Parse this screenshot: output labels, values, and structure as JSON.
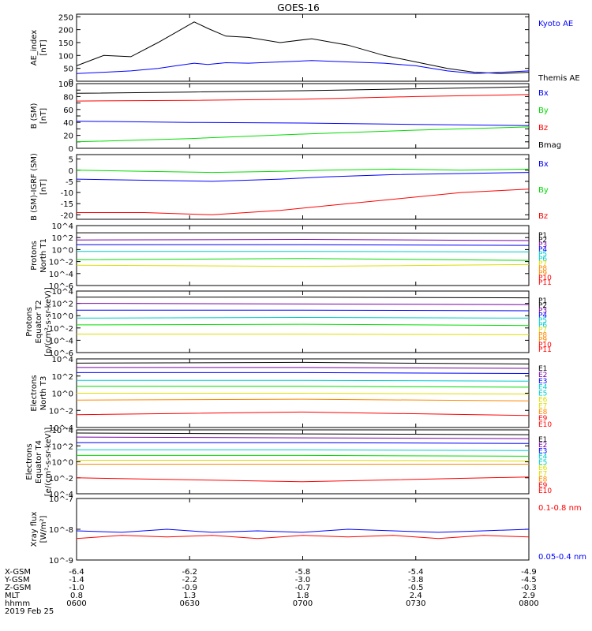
{
  "title": "GOES-16",
  "footer": {
    "rows": [
      {
        "label": "X-GSM",
        "values": [
          "-6.4",
          "-6.2",
          "-5.8",
          "-5.4",
          "-4.9"
        ]
      },
      {
        "label": "Y-GSM",
        "values": [
          "-1.4",
          "-2.2",
          "-3.0",
          "-3.8",
          "-4.5"
        ]
      },
      {
        "label": "Z-GSM",
        "values": [
          "-1.0",
          "-0.9",
          "-0.7",
          "-0.5",
          "-0.3"
        ]
      },
      {
        "label": "MLT",
        "values": [
          "0.8",
          "1.3",
          "1.8",
          "2.4",
          "2.9"
        ]
      },
      {
        "label": "hhmm",
        "values": [
          "0600",
          "0630",
          "0700",
          "0730",
          "0800"
        ]
      }
    ],
    "date": "2019 Feb 25"
  },
  "colors": {
    "black": "#000000",
    "blue": "#0000ff",
    "green": "#00dd00",
    "red": "#ff0000",
    "purple": "#7700aa",
    "cyan": "#00cccc",
    "yellow": "#dddd00",
    "orange": "#ff8800"
  },
  "chart_data": [
    {
      "type": "line",
      "ylabel": [
        "AE_index",
        "[nT]"
      ],
      "ylim": [
        0,
        260
      ],
      "yscale": "linear",
      "ticks": [
        0,
        50,
        100,
        150,
        200,
        250
      ],
      "tick_labels": [
        "0",
        "50",
        "100",
        "150",
        "200",
        "250"
      ],
      "x": [
        0,
        0.06,
        0.12,
        0.18,
        0.22,
        0.26,
        0.29,
        0.33,
        0.38,
        0.45,
        0.52,
        0.6,
        0.68,
        0.75,
        0.82,
        0.88,
        0.94,
        1.0
      ],
      "series": [
        {
          "name": "Themis AE",
          "color": "#000000",
          "values": [
            60,
            100,
            95,
            150,
            190,
            230,
            205,
            175,
            170,
            150,
            165,
            140,
            100,
            75,
            50,
            35,
            30,
            35
          ]
        },
        {
          "name": "Kyoto AE",
          "color": "#0000ff",
          "values": [
            30,
            35,
            40,
            50,
            60,
            70,
            65,
            72,
            70,
            75,
            80,
            75,
            70,
            60,
            40,
            30,
            35,
            40
          ]
        }
      ],
      "legend": [
        "Kyoto AE",
        "Themis AE"
      ],
      "legend_colors": [
        "#0000ff",
        "#000000"
      ]
    },
    {
      "type": "line",
      "ylabel": [
        "B (SM)",
        "[nT]"
      ],
      "ylim": [
        0,
        100
      ],
      "yscale": "linear",
      "ticks": [
        0,
        10,
        20,
        30,
        40,
        50,
        60,
        70,
        80,
        90,
        100
      ],
      "tick_labels": [
        "0",
        "",
        "20",
        "",
        "40",
        "",
        "60",
        "",
        "80",
        "",
        "100"
      ],
      "x": [
        0,
        0.25,
        0.5,
        0.75,
        1.0
      ],
      "series": [
        {
          "name": "Bmag",
          "color": "#000000",
          "values": [
            85,
            87,
            89,
            92,
            95
          ]
        },
        {
          "name": "Bz",
          "color": "#ff0000",
          "values": [
            73,
            74,
            76,
            80,
            83
          ]
        },
        {
          "name": "Bx",
          "color": "#0000ff",
          "values": [
            42,
            40,
            39,
            37,
            35
          ]
        },
        {
          "name": "By",
          "color": "#00dd00",
          "values": [
            10,
            15,
            22,
            28,
            33
          ]
        }
      ],
      "legend": [
        "Bx",
        "By",
        "Bz",
        "Bmag"
      ],
      "legend_colors": [
        "#0000ff",
        "#00dd00",
        "#ff0000",
        "#000000"
      ]
    },
    {
      "type": "line",
      "ylabel": [
        "B (SM)-IGRF (SM)",
        "[nT]"
      ],
      "ylim": [
        -22,
        7
      ],
      "yscale": "linear",
      "ticks": [
        -20,
        -15,
        -10,
        -5,
        0,
        5
      ],
      "tick_labels": [
        "-20",
        "-15",
        "-10",
        "-5",
        "0",
        "5"
      ],
      "x": [
        0,
        0.15,
        0.3,
        0.45,
        0.55,
        0.7,
        0.85,
        1.0
      ],
      "series": [
        {
          "name": "By",
          "color": "#00dd00",
          "values": [
            0,
            -0.5,
            -1,
            -0.5,
            0,
            0.5,
            0,
            0.5
          ]
        },
        {
          "name": "Bx",
          "color": "#0000ff",
          "values": [
            -4,
            -4.5,
            -5,
            -4,
            -3,
            -2,
            -1.5,
            -1
          ]
        },
        {
          "name": "Bz",
          "color": "#ff0000",
          "values": [
            -19,
            -19,
            -20,
            -18,
            -16,
            -13,
            -10,
            -8.5
          ]
        }
      ],
      "legend": [
        "Bx",
        "By",
        "Bz"
      ],
      "legend_colors": [
        "#0000ff",
        "#00dd00",
        "#ff0000"
      ]
    },
    {
      "type": "line",
      "ylabel": [
        "Protons",
        "North T1"
      ],
      "ylim": [
        -6,
        4
      ],
      "yscale": "log",
      "ticks": [
        4,
        2,
        0,
        -2,
        -4,
        -6
      ],
      "tick_labels": [
        "10^4",
        "10^2",
        "10^0",
        "10^-2",
        "10^-4",
        "10^-6"
      ],
      "x": [
        0,
        0.5,
        1.0
      ],
      "series": [
        {
          "name": "P1",
          "color": "#000000",
          "values": [
            2.8,
            2.8,
            2.7
          ]
        },
        {
          "name": "P2",
          "color": "#7700aa",
          "values": [
            1.6,
            1.7,
            1.5
          ]
        },
        {
          "name": "P3",
          "color": "#0000ff",
          "values": [
            0.8,
            0.8,
            0.7
          ]
        },
        {
          "name": "P4",
          "color": "#00cccc",
          "values": [
            -0.3,
            -0.3,
            -0.4
          ]
        },
        {
          "name": "P5",
          "color": "#00dd00",
          "values": [
            -1.7,
            -1.5,
            -1.8
          ]
        },
        {
          "name": "P7",
          "color": "#dddd00",
          "values": [
            -2.6,
            -2.8,
            -2.5
          ]
        }
      ],
      "legend": [
        "P1",
        "P2",
        "P3",
        "P4",
        "P5",
        "P6",
        "P7",
        "P8",
        "P9",
        "P10",
        "P11"
      ],
      "legend_colors": [
        "#000000",
        "#000000",
        "#7700aa",
        "#0000ff",
        "#00cccc",
        "#00cccc",
        "#dddd00",
        "#ff8800",
        "#ff8800",
        "#ff0000",
        "#ff0000"
      ]
    },
    {
      "type": "line",
      "ylabel": [
        "Protons",
        "Equator T2",
        "[p/(cm²-s-sr-keV)]"
      ],
      "ylim": [
        -6,
        4
      ],
      "yscale": "log",
      "ticks": [
        4,
        2,
        0,
        -2,
        -4,
        -6
      ],
      "tick_labels": [
        "10^4",
        "10^2",
        "10^0",
        "10^-2",
        "10^-4",
        "10^-6"
      ],
      "x": [
        0,
        0.5,
        1.0
      ],
      "series": [
        {
          "name": "P1",
          "color": "#000000",
          "values": [
            3.0,
            3.0,
            2.9
          ]
        },
        {
          "name": "P2",
          "color": "#7700aa",
          "values": [
            2.0,
            1.9,
            1.8
          ]
        },
        {
          "name": "P3",
          "color": "#0000ff",
          "values": [
            0.9,
            0.9,
            0.8
          ]
        },
        {
          "name": "P4",
          "color": "#00cccc",
          "values": [
            -0.4,
            -0.3,
            -0.4
          ]
        },
        {
          "name": "P5",
          "color": "#00dd00",
          "values": [
            -1.5,
            -1.4,
            -1.6
          ]
        },
        {
          "name": "P7",
          "color": "#dddd00",
          "values": [
            -3.0,
            -3.0,
            -3.1
          ]
        }
      ],
      "legend": [
        "P1",
        "P2",
        "P3",
        "P4",
        "P5",
        "P6",
        "P7",
        "P8",
        "P9",
        "P10",
        "P11"
      ],
      "legend_colors": [
        "#000000",
        "#000000",
        "#7700aa",
        "#0000ff",
        "#00cccc",
        "#00cccc",
        "#dddd00",
        "#ff8800",
        "#ff8800",
        "#ff0000",
        "#ff0000"
      ]
    },
    {
      "type": "line",
      "ylabel": [
        "Electrons",
        "North T3"
      ],
      "ylim": [
        -4,
        4
      ],
      "yscale": "log",
      "ticks": [
        4,
        2,
        0,
        -2,
        -4
      ],
      "tick_labels": [
        "10^4",
        "10^2",
        "10^0",
        "10^-2",
        "10^-4"
      ],
      "x": [
        0,
        0.5,
        1.0
      ],
      "series": [
        {
          "name": "E1",
          "color": "#000000",
          "values": [
            3.5,
            3.6,
            3.4
          ]
        },
        {
          "name": "E2",
          "color": "#7700aa",
          "values": [
            3.0,
            3.0,
            2.9
          ]
        },
        {
          "name": "E3",
          "color": "#0000ff",
          "values": [
            2.4,
            2.4,
            2.3
          ]
        },
        {
          "name": "E4",
          "color": "#00cccc",
          "values": [
            1.5,
            1.5,
            1.4
          ]
        },
        {
          "name": "E5",
          "color": "#00dd00",
          "values": [
            0.8,
            0.8,
            0.7
          ]
        },
        {
          "name": "E6",
          "color": "#dddd00",
          "values": [
            0,
            0,
            -0.1
          ]
        },
        {
          "name": "E7",
          "color": "#ff8800",
          "values": [
            -0.8,
            -0.7,
            -0.9
          ]
        },
        {
          "name": "E9",
          "color": "#ff0000",
          "values": [
            -2.5,
            -2.2,
            -2.6
          ]
        }
      ],
      "legend": [
        "E1",
        "E2",
        "E3",
        "E4",
        "E5",
        "E6",
        "E7",
        "E8",
        "E9",
        "E10"
      ],
      "legend_colors": [
        "#000000",
        "#7700aa",
        "#0000ff",
        "#00cccc",
        "#00cccc",
        "#dddd00",
        "#dddd00",
        "#ff8800",
        "#ff0000",
        "#ff0000"
      ]
    },
    {
      "type": "line",
      "ylabel": [
        "Electrons",
        "Equator T4",
        "[e/(cm²-s-sr-keV)]"
      ],
      "ylim": [
        -4,
        4
      ],
      "yscale": "log",
      "ticks": [
        4,
        2,
        0,
        -2,
        -4
      ],
      "tick_labels": [
        "10^4",
        "10^2",
        "10^0",
        "10^-2",
        "10^-4"
      ],
      "x": [
        0,
        0.5,
        1.0
      ],
      "series": [
        {
          "name": "E1",
          "color": "#000000",
          "values": [
            3.6,
            3.5,
            3.4
          ]
        },
        {
          "name": "E2",
          "color": "#7700aa",
          "values": [
            3.1,
            3.0,
            2.9
          ]
        },
        {
          "name": "E3",
          "color": "#0000ff",
          "values": [
            2.4,
            2.4,
            2.3
          ]
        },
        {
          "name": "E4",
          "color": "#00cccc",
          "values": [
            1.5,
            1.5,
            1.4
          ]
        },
        {
          "name": "E5",
          "color": "#00dd00",
          "values": [
            0.8,
            0.8,
            0.7
          ]
        },
        {
          "name": "E6",
          "color": "#dddd00",
          "values": [
            0.2,
            0.2,
            0.1
          ]
        },
        {
          "name": "E7",
          "color": "#ff8800",
          "values": [
            -0.3,
            -0.3,
            -0.3
          ]
        },
        {
          "name": "E9",
          "color": "#ff0000",
          "values": [
            -2.0,
            -2.5,
            -1.9
          ]
        }
      ],
      "legend": [
        "E1",
        "E2",
        "E3",
        "E4",
        "E5",
        "E6",
        "E7",
        "E8",
        "E9",
        "E10"
      ],
      "legend_colors": [
        "#000000",
        "#7700aa",
        "#0000ff",
        "#00cccc",
        "#00cccc",
        "#dddd00",
        "#dddd00",
        "#ff8800",
        "#ff0000",
        "#ff0000"
      ]
    },
    {
      "type": "line",
      "ylabel": [
        "Xray flux",
        "[W/m²]"
      ],
      "ylim": [
        -9,
        -7
      ],
      "yscale": "log",
      "ticks": [
        -7,
        -8,
        -9
      ],
      "tick_labels": [
        "10^-7",
        "10^-8",
        "10^-9"
      ],
      "x": [
        0,
        0.1,
        0.2,
        0.3,
        0.4,
        0.5,
        0.6,
        0.7,
        0.8,
        0.9,
        1.0
      ],
      "series": [
        {
          "name": "0.05-0.4 nm",
          "color": "#0000ff",
          "values": [
            -8.05,
            -8.1,
            -8.0,
            -8.1,
            -8.05,
            -8.1,
            -8.0,
            -8.05,
            -8.1,
            -8.05,
            -8.0
          ]
        },
        {
          "name": "0.1-0.8 nm",
          "color": "#ff0000",
          "values": [
            -8.3,
            -8.2,
            -8.25,
            -8.2,
            -8.3,
            -8.2,
            -8.25,
            -8.2,
            -8.3,
            -8.2,
            -8.25
          ]
        }
      ],
      "legend": [
        "0.1-0.8 nm",
        "0.05-0.4 nm"
      ],
      "legend_colors": [
        "#ff0000",
        "#0000ff"
      ]
    }
  ]
}
